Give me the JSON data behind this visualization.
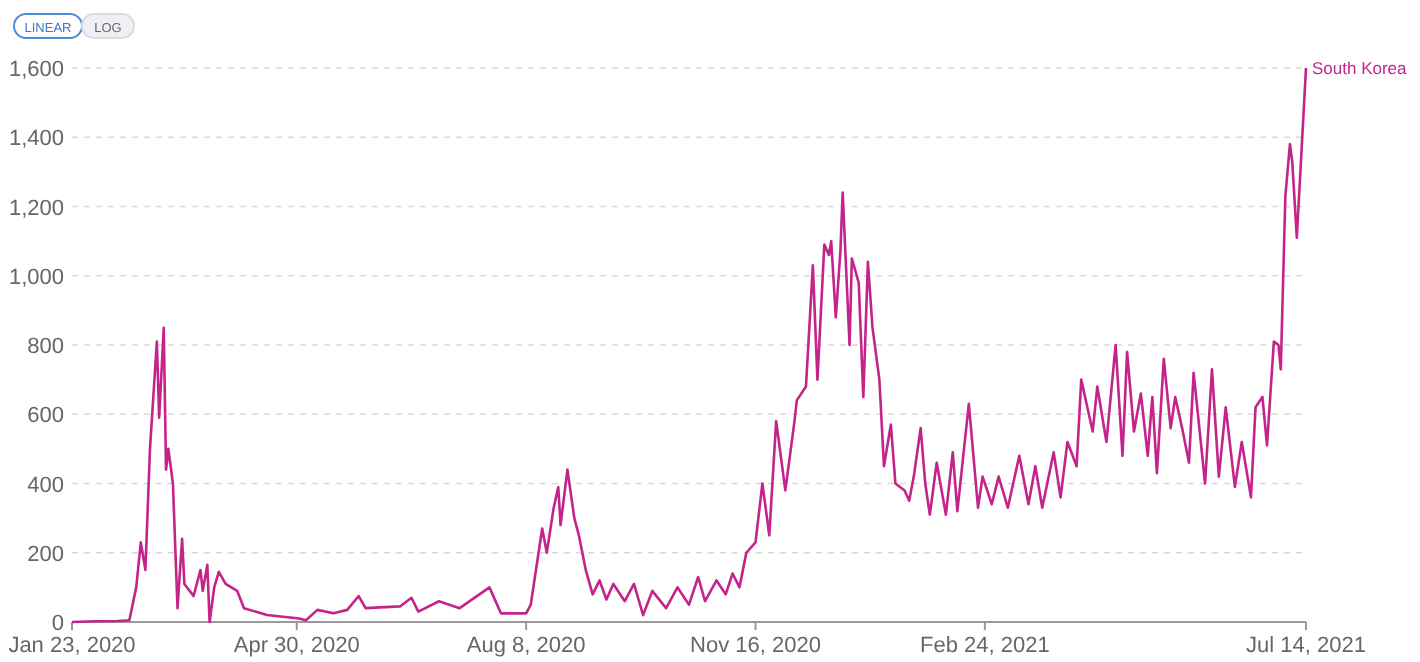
{
  "chart_data": {
    "type": "line",
    "annotations": [
      "LINEAR",
      "LOG"
    ],
    "xlim": [
      "2020-01-23",
      "2021-07-14"
    ],
    "xticks": [
      {
        "value": "2020-01-23",
        "label": "Jan 23, 2020"
      },
      {
        "value": "2020-04-30",
        "label": "Apr 30, 2020"
      },
      {
        "value": "2020-08-08",
        "label": "Aug 8, 2020"
      },
      {
        "value": "2020-11-16",
        "label": "Nov 16, 2020"
      },
      {
        "value": "2021-02-24",
        "label": "Feb 24, 2021"
      },
      {
        "value": "2021-07-14",
        "label": "Jul 14, 2021"
      }
    ],
    "ylim": [
      0,
      1600
    ],
    "yticks": [
      {
        "value": 0,
        "label": "0"
      },
      {
        "value": 200,
        "label": "200"
      },
      {
        "value": 400,
        "label": "400"
      },
      {
        "value": 600,
        "label": "600"
      },
      {
        "value": 800,
        "label": "800"
      },
      {
        "value": 1000,
        "label": "1,000"
      },
      {
        "value": 1200,
        "label": "1,200"
      },
      {
        "value": 1400,
        "label": "1,400"
      },
      {
        "value": 1600,
        "label": "1,600"
      }
    ],
    "grid": "y",
    "series": [
      {
        "name": "South Korea",
        "color": "#c4248a",
        "x": [
          "2020-01-23",
          "2020-02-02",
          "2020-02-12",
          "2020-02-17",
          "2020-02-20",
          "2020-02-22",
          "2020-02-24",
          "2020-02-26",
          "2020-02-29",
          "2020-03-01",
          "2020-03-03",
          "2020-03-04",
          "2020-03-05",
          "2020-03-07",
          "2020-03-09",
          "2020-03-11",
          "2020-03-12",
          "2020-03-16",
          "2020-03-19",
          "2020-03-20",
          "2020-03-22",
          "2020-03-23",
          "2020-03-25",
          "2020-03-27",
          "2020-03-30",
          "2020-04-04",
          "2020-04-07",
          "2020-04-17",
          "2020-05-01",
          "2020-05-04",
          "2020-05-09",
          "2020-05-16",
          "2020-05-22",
          "2020-05-27",
          "2020-05-30",
          "2020-06-14",
          "2020-06-19",
          "2020-06-22",
          "2020-07-01",
          "2020-07-10",
          "2020-07-23",
          "2020-07-28",
          "2020-08-08",
          "2020-08-10",
          "2020-08-15",
          "2020-08-17",
          "2020-08-20",
          "2020-08-22",
          "2020-08-23",
          "2020-08-26",
          "2020-08-29",
          "2020-08-31",
          "2020-09-03",
          "2020-09-06",
          "2020-09-09",
          "2020-09-12",
          "2020-09-15",
          "2020-09-20",
          "2020-09-24",
          "2020-09-28",
          "2020-10-02",
          "2020-10-08",
          "2020-10-13",
          "2020-10-18",
          "2020-10-22",
          "2020-10-25",
          "2020-10-30",
          "2020-11-03",
          "2020-11-06",
          "2020-11-09",
          "2020-11-12",
          "2020-11-16",
          "2020-11-19",
          "2020-11-22",
          "2020-11-25",
          "2020-11-29",
          "2020-12-03",
          "2020-12-04",
          "2020-12-08",
          "2020-12-11",
          "2020-12-13",
          "2020-12-16",
          "2020-12-18",
          "2020-12-19",
          "2020-12-21",
          "2020-12-23",
          "2020-12-24",
          "2020-12-27",
          "2020-12-28",
          "2020-12-31",
          "2021-01-02",
          "2021-01-04",
          "2021-01-06",
          "2021-01-09",
          "2021-01-11",
          "2021-01-14",
          "2021-01-16",
          "2021-01-20",
          "2021-01-22",
          "2021-01-24",
          "2021-01-27",
          "2021-01-29",
          "2021-01-31",
          "2021-02-03",
          "2021-02-07",
          "2021-02-10",
          "2021-02-12",
          "2021-02-17",
          "2021-02-21",
          "2021-02-23",
          "2021-02-27",
          "2021-03-02",
          "2021-03-06",
          "2021-03-11",
          "2021-03-15",
          "2021-03-18",
          "2021-03-21",
          "2021-03-26",
          "2021-03-29",
          "2021-04-01",
          "2021-04-05",
          "2021-04-07",
          "2021-04-12",
          "2021-04-14",
          "2021-04-18",
          "2021-04-22",
          "2021-04-25",
          "2021-04-27",
          "2021-04-30",
          "2021-05-03",
          "2021-05-06",
          "2021-05-08",
          "2021-05-10",
          "2021-05-13",
          "2021-05-16",
          "2021-05-18",
          "2021-05-21",
          "2021-05-24",
          "2021-05-26",
          "2021-05-31",
          "2021-06-03",
          "2021-06-06",
          "2021-06-09",
          "2021-06-13",
          "2021-06-16",
          "2021-06-20",
          "2021-06-22",
          "2021-06-25",
          "2021-06-27",
          "2021-06-30",
          "2021-07-02",
          "2021-07-03",
          "2021-07-05",
          "2021-07-07",
          "2021-07-08",
          "2021-07-10",
          "2021-07-14"
        ],
        "values": [
          0,
          2,
          3,
          5,
          100,
          230,
          150,
          500,
          810,
          590,
          850,
          440,
          500,
          400,
          40,
          240,
          110,
          75,
          150,
          90,
          165,
          0,
          100,
          145,
          110,
          90,
          40,
          20,
          10,
          5,
          35,
          25,
          35,
          75,
          40,
          45,
          70,
          30,
          60,
          40,
          100,
          25,
          25,
          50,
          270,
          200,
          330,
          390,
          280,
          440,
          300,
          250,
          150,
          80,
          120,
          65,
          110,
          60,
          110,
          20,
          90,
          40,
          100,
          50,
          130,
          60,
          120,
          80,
          140,
          100,
          200,
          230,
          400,
          250,
          580,
          380,
          580,
          640,
          680,
          1030,
          700,
          1090,
          1060,
          1100,
          880,
          1070,
          1240,
          800,
          1050,
          980,
          650,
          1040,
          850,
          700,
          450,
          570,
          400,
          380,
          350,
          420,
          560,
          400,
          310,
          460,
          310,
          490,
          320,
          630,
          330,
          420,
          340,
          420,
          330,
          480,
          340,
          450,
          330,
          490,
          360,
          520,
          450,
          700,
          550,
          680,
          520,
          800,
          480,
          780,
          550,
          660,
          480,
          650,
          430,
          760,
          560,
          650,
          560,
          460,
          720,
          400,
          730,
          420,
          620,
          390,
          520,
          360,
          620,
          650,
          510,
          810,
          800,
          730,
          1230,
          1380,
          1330,
          1110,
          1600
        ]
      }
    ]
  }
}
